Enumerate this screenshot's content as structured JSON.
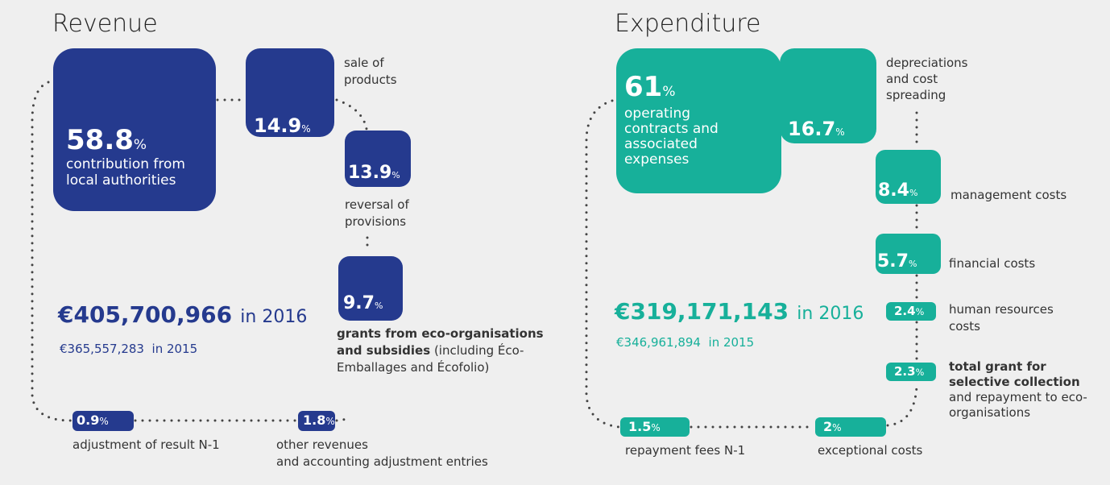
{
  "unit": "%",
  "revenue": {
    "title": "Revenue",
    "total": {
      "amount": "€405,700,966",
      "year": "in 2016"
    },
    "previous": {
      "amount": "€365,557,283",
      "year": "in 2015"
    },
    "items": [
      {
        "value": 58.8,
        "label": "contribution from local authorities"
      },
      {
        "value": 14.9,
        "label": "sale of products"
      },
      {
        "value": 13.9,
        "label": "reversal of provisions"
      },
      {
        "value": 9.7,
        "label_bold": "grants from eco-organisations and subsidies",
        "label": "(including Éco-Emballages and Écofolio)"
      },
      {
        "value": 0.9,
        "label": "adjustment of result N-1"
      },
      {
        "value": 1.8,
        "label_bold": "other revenues",
        "label": "and accounting adjustment entries"
      }
    ]
  },
  "expenditure": {
    "title": "Expenditure",
    "total": {
      "amount": "€319,171,143",
      "year": "in 2016"
    },
    "previous": {
      "amount": "€346,961,894",
      "year": "in 2015"
    },
    "items": [
      {
        "value": 61,
        "label": "operating contracts and associated expenses"
      },
      {
        "value": 16.7,
        "label": "depreciations and cost spreading"
      },
      {
        "value": 8.4,
        "label": "management costs"
      },
      {
        "value": 5.7,
        "label": "financial costs"
      },
      {
        "value": 2.4,
        "label": "human resources costs"
      },
      {
        "value": 2.3,
        "label_bold": "total grant for selective collection",
        "label": "and repayment to eco-organisations"
      },
      {
        "value": 1.5,
        "label": "repayment fees N-1"
      },
      {
        "value": 2,
        "label": "exceptional costs"
      }
    ]
  }
}
